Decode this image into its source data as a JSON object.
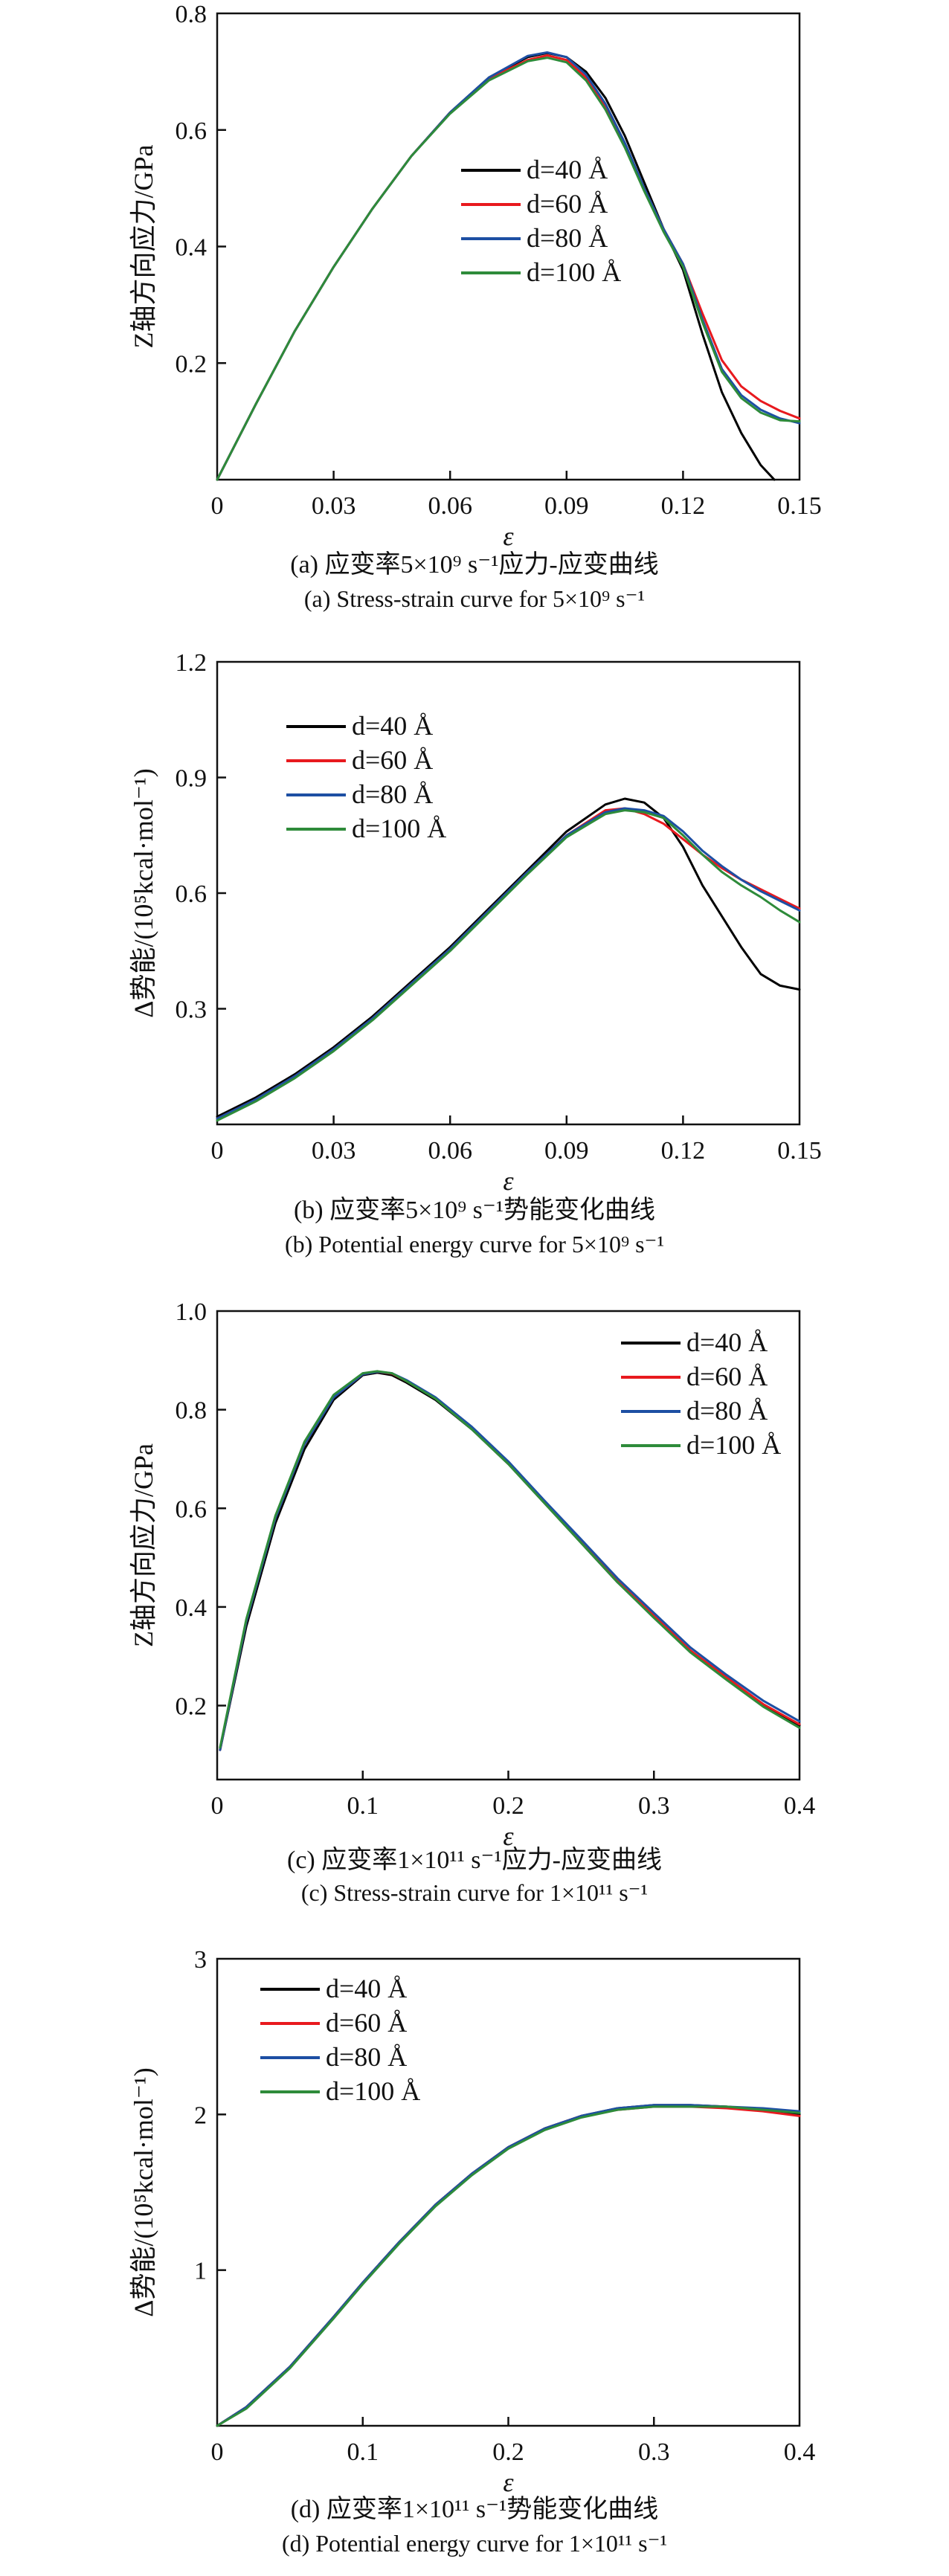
{
  "colors": {
    "d40": "#000000",
    "d60": "#e8191e",
    "d80": "#1d4fa3",
    "d100": "#2e8b3a"
  },
  "chart_data": [
    {
      "type": "line",
      "panel": "a",
      "xlabel": "ε",
      "ylabel": "Z轴方向应力/GPa",
      "xlim": [
        0,
        0.15
      ],
      "ylim": [
        0,
        0.8
      ],
      "xticks": [
        "0",
        "0.03",
        "0.06",
        "0.09",
        "0.12",
        "0.15"
      ],
      "xtick_values": [
        0,
        0.03,
        0.06,
        0.09,
        0.12,
        0.15
      ],
      "yticks": [
        "0.2",
        "0.4",
        "0.6",
        "0.8"
      ],
      "ytick_values": [
        0.2,
        0.4,
        0.6,
        0.8
      ],
      "legend_position": "center",
      "caption_cn": "(a) 应变率5×10⁹ s⁻¹应力-应变曲线",
      "caption_en": "(a) Stress-strain curve for 5×10⁹ s⁻¹",
      "series": [
        {
          "name": "d=40 Å",
          "color_key": "d40",
          "x": [
            0,
            0.01,
            0.02,
            0.03,
            0.04,
            0.05,
            0.06,
            0.07,
            0.08,
            0.085,
            0.09,
            0.095,
            0.1,
            0.105,
            0.11,
            0.115,
            0.12,
            0.125,
            0.13,
            0.135,
            0.14,
            0.1435
          ],
          "y": [
            0,
            0.13,
            0.255,
            0.365,
            0.465,
            0.555,
            0.63,
            0.69,
            0.725,
            0.732,
            0.725,
            0.7,
            0.655,
            0.59,
            0.51,
            0.43,
            0.36,
            0.25,
            0.15,
            0.08,
            0.025,
            0
          ]
        },
        {
          "name": "d=60 Å",
          "color_key": "d60",
          "x": [
            0,
            0.01,
            0.02,
            0.03,
            0.04,
            0.05,
            0.06,
            0.07,
            0.08,
            0.085,
            0.09,
            0.095,
            0.1,
            0.105,
            0.11,
            0.115,
            0.12,
            0.125,
            0.13,
            0.135,
            0.14,
            0.145,
            0.15
          ],
          "y": [
            0,
            0.13,
            0.255,
            0.365,
            0.465,
            0.555,
            0.63,
            0.688,
            0.72,
            0.728,
            0.72,
            0.69,
            0.64,
            0.575,
            0.5,
            0.43,
            0.37,
            0.285,
            0.205,
            0.16,
            0.135,
            0.118,
            0.105
          ]
        },
        {
          "name": "d=80 Å",
          "color_key": "d80",
          "x": [
            0,
            0.01,
            0.02,
            0.03,
            0.04,
            0.05,
            0.06,
            0.07,
            0.08,
            0.085,
            0.09,
            0.095,
            0.1,
            0.105,
            0.11,
            0.115,
            0.12,
            0.125,
            0.13,
            0.135,
            0.14,
            0.145,
            0.15
          ],
          "y": [
            0,
            0.13,
            0.255,
            0.365,
            0.465,
            0.555,
            0.63,
            0.69,
            0.727,
            0.733,
            0.725,
            0.695,
            0.645,
            0.578,
            0.5,
            0.43,
            0.37,
            0.275,
            0.19,
            0.145,
            0.12,
            0.105,
            0.097
          ]
        },
        {
          "name": "d=100 Å",
          "color_key": "d100",
          "x": [
            0,
            0.01,
            0.02,
            0.03,
            0.04,
            0.05,
            0.06,
            0.07,
            0.08,
            0.085,
            0.09,
            0.095,
            0.1,
            0.105,
            0.11,
            0.115,
            0.12,
            0.125,
            0.13,
            0.135,
            0.14,
            0.145,
            0.15
          ],
          "y": [
            0,
            0.13,
            0.255,
            0.365,
            0.465,
            0.555,
            0.628,
            0.685,
            0.718,
            0.724,
            0.716,
            0.685,
            0.635,
            0.57,
            0.495,
            0.425,
            0.365,
            0.27,
            0.185,
            0.14,
            0.115,
            0.102,
            0.1
          ]
        }
      ]
    },
    {
      "type": "line",
      "panel": "b",
      "xlabel": "ε",
      "ylabel": "Δ势能/(10⁵kcal·mol⁻¹)",
      "xlim": [
        0,
        0.15
      ],
      "ylim": [
        0,
        1.2
      ],
      "xticks": [
        "0",
        "0.03",
        "0.06",
        "0.09",
        "0.12",
        "0.15"
      ],
      "xtick_values": [
        0,
        0.03,
        0.06,
        0.09,
        0.12,
        0.15
      ],
      "yticks": [
        "0.3",
        "0.6",
        "0.9",
        "1.2"
      ],
      "ytick_values": [
        0.3,
        0.6,
        0.9,
        1.2
      ],
      "legend_position": "top-left",
      "caption_cn": "(b) 应变率5×10⁹ s⁻¹势能变化曲线",
      "caption_en": "(b) Potential energy curve for 5×10⁹ s⁻¹",
      "series": [
        {
          "name": "d=40 Å",
          "color_key": "d40",
          "x": [
            0,
            0.01,
            0.02,
            0.03,
            0.04,
            0.05,
            0.06,
            0.07,
            0.08,
            0.09,
            0.1,
            0.105,
            0.11,
            0.115,
            0.12,
            0.125,
            0.13,
            0.135,
            0.14,
            0.145,
            0.15
          ],
          "y": [
            0.02,
            0.07,
            0.13,
            0.2,
            0.28,
            0.37,
            0.46,
            0.56,
            0.66,
            0.76,
            0.83,
            0.845,
            0.835,
            0.795,
            0.72,
            0.62,
            0.54,
            0.46,
            0.39,
            0.36,
            0.35
          ]
        },
        {
          "name": "d=60 Å",
          "color_key": "d60",
          "x": [
            0,
            0.01,
            0.02,
            0.03,
            0.04,
            0.05,
            0.06,
            0.07,
            0.08,
            0.09,
            0.1,
            0.105,
            0.11,
            0.115,
            0.12,
            0.125,
            0.13,
            0.135,
            0.14,
            0.145,
            0.15
          ],
          "y": [
            0.015,
            0.065,
            0.125,
            0.195,
            0.275,
            0.365,
            0.455,
            0.555,
            0.655,
            0.75,
            0.815,
            0.82,
            0.805,
            0.78,
            0.74,
            0.7,
            0.665,
            0.635,
            0.61,
            0.585,
            0.56
          ]
        },
        {
          "name": "d=80 Å",
          "color_key": "d80",
          "x": [
            0,
            0.01,
            0.02,
            0.03,
            0.04,
            0.05,
            0.06,
            0.07,
            0.08,
            0.09,
            0.1,
            0.105,
            0.11,
            0.115,
            0.12,
            0.125,
            0.13,
            0.135,
            0.14,
            0.145,
            0.15
          ],
          "y": [
            0.015,
            0.065,
            0.125,
            0.195,
            0.275,
            0.365,
            0.455,
            0.555,
            0.655,
            0.75,
            0.81,
            0.82,
            0.815,
            0.8,
            0.76,
            0.71,
            0.67,
            0.635,
            0.605,
            0.58,
            0.555
          ]
        },
        {
          "name": "d=100 Å",
          "color_key": "d100",
          "x": [
            0,
            0.01,
            0.02,
            0.03,
            0.04,
            0.05,
            0.06,
            0.07,
            0.08,
            0.09,
            0.1,
            0.105,
            0.11,
            0.115,
            0.12,
            0.125,
            0.13,
            0.135,
            0.14,
            0.145,
            0.15
          ],
          "y": [
            0.01,
            0.06,
            0.12,
            0.19,
            0.27,
            0.36,
            0.45,
            0.55,
            0.65,
            0.745,
            0.805,
            0.815,
            0.81,
            0.795,
            0.75,
            0.7,
            0.655,
            0.62,
            0.59,
            0.555,
            0.525
          ]
        }
      ]
    },
    {
      "type": "line",
      "panel": "c",
      "xlabel": "ε",
      "ylabel": "Z轴方向应力/GPa",
      "xlim": [
        0,
        0.4
      ],
      "ylim": [
        0.05,
        1.0
      ],
      "xticks": [
        "0",
        "0.1",
        "0.2",
        "0.3",
        "0.4"
      ],
      "xtick_values": [
        0,
        0.1,
        0.2,
        0.3,
        0.4
      ],
      "yticks": [
        "0.2",
        "0.4",
        "0.6",
        "0.8",
        "1.0"
      ],
      "ytick_values": [
        0.2,
        0.4,
        0.6,
        0.8,
        1.0
      ],
      "legend_position": "top-right",
      "caption_cn": "(c) 应变率1×10¹¹ s⁻¹应力-应变曲线",
      "caption_en": "(c) Stress-strain curve for 1×10¹¹ s⁻¹",
      "series": [
        {
          "name": "d=40 Å",
          "color_key": "d40",
          "x": [
            0.002,
            0.02,
            0.04,
            0.06,
            0.08,
            0.1,
            0.11,
            0.12,
            0.13,
            0.15,
            0.175,
            0.2,
            0.225,
            0.25,
            0.275,
            0.3,
            0.325,
            0.35,
            0.375,
            0.4
          ],
          "y": [
            0.11,
            0.36,
            0.57,
            0.72,
            0.82,
            0.87,
            0.875,
            0.87,
            0.855,
            0.82,
            0.76,
            0.69,
            0.61,
            0.53,
            0.45,
            0.38,
            0.31,
            0.255,
            0.2,
            0.16
          ]
        },
        {
          "name": "d=60 Å",
          "color_key": "d60",
          "x": [
            0.002,
            0.02,
            0.04,
            0.06,
            0.08,
            0.1,
            0.11,
            0.12,
            0.13,
            0.15,
            0.175,
            0.2,
            0.225,
            0.25,
            0.275,
            0.3,
            0.325,
            0.35,
            0.375,
            0.4
          ],
          "y": [
            0.11,
            0.37,
            0.58,
            0.73,
            0.825,
            0.872,
            0.877,
            0.873,
            0.858,
            0.823,
            0.762,
            0.692,
            0.612,
            0.532,
            0.452,
            0.382,
            0.312,
            0.257,
            0.203,
            0.162
          ]
        },
        {
          "name": "d=80 Å",
          "color_key": "d80",
          "x": [
            0.002,
            0.02,
            0.04,
            0.06,
            0.08,
            0.1,
            0.11,
            0.12,
            0.13,
            0.15,
            0.175,
            0.2,
            0.225,
            0.25,
            0.275,
            0.3,
            0.325,
            0.35,
            0.375,
            0.4
          ],
          "y": [
            0.11,
            0.37,
            0.58,
            0.73,
            0.825,
            0.872,
            0.877,
            0.874,
            0.86,
            0.825,
            0.765,
            0.695,
            0.615,
            0.537,
            0.458,
            0.388,
            0.318,
            0.262,
            0.21,
            0.168
          ]
        },
        {
          "name": "d=100 Å",
          "color_key": "d100",
          "x": [
            0.002,
            0.02,
            0.04,
            0.06,
            0.08,
            0.1,
            0.11,
            0.12,
            0.13,
            0.15,
            0.175,
            0.2,
            0.225,
            0.25,
            0.275,
            0.3,
            0.325,
            0.35,
            0.375,
            0.4
          ],
          "y": [
            0.115,
            0.375,
            0.585,
            0.735,
            0.83,
            0.874,
            0.878,
            0.874,
            0.858,
            0.822,
            0.76,
            0.69,
            0.61,
            0.53,
            0.45,
            0.378,
            0.308,
            0.252,
            0.198,
            0.155
          ]
        }
      ]
    },
    {
      "type": "line",
      "panel": "d",
      "xlabel": "ε",
      "ylabel": "Δ势能/(10⁵kcal·mol⁻¹)",
      "xlim": [
        0,
        0.4
      ],
      "ylim": [
        0,
        3
      ],
      "xticks": [
        "0",
        "0.1",
        "0.2",
        "0.3",
        "0.4"
      ],
      "xtick_values": [
        0,
        0.1,
        0.2,
        0.3,
        0.4
      ],
      "yticks": [
        "1",
        "2",
        "3"
      ],
      "ytick_values": [
        1,
        2,
        3
      ],
      "legend_position": "top-left",
      "caption_cn": "(d) 应变率1×10¹¹ s⁻¹势能变化曲线",
      "caption_en": "(d) Potential energy curve for 1×10¹¹ s⁻¹",
      "series": [
        {
          "name": "d=40 Å",
          "color_key": "d40",
          "x": [
            0,
            0.02,
            0.05,
            0.08,
            0.1,
            0.125,
            0.15,
            0.175,
            0.2,
            0.225,
            0.25,
            0.275,
            0.3,
            0.325,
            0.35,
            0.375,
            0.4
          ],
          "y": [
            0,
            0.12,
            0.38,
            0.7,
            0.92,
            1.18,
            1.42,
            1.62,
            1.79,
            1.91,
            1.99,
            2.04,
            2.06,
            2.06,
            2.05,
            2.03,
            2.0
          ]
        },
        {
          "name": "d=60 Å",
          "color_key": "d60",
          "x": [
            0,
            0.02,
            0.05,
            0.08,
            0.1,
            0.125,
            0.15,
            0.175,
            0.2,
            0.225,
            0.25,
            0.275,
            0.3,
            0.325,
            0.35,
            0.375,
            0.4
          ],
          "y": [
            0,
            0.12,
            0.38,
            0.7,
            0.92,
            1.18,
            1.42,
            1.62,
            1.79,
            1.91,
            1.99,
            2.03,
            2.05,
            2.05,
            2.04,
            2.02,
            1.99
          ]
        },
        {
          "name": "d=80 Å",
          "color_key": "d80",
          "x": [
            0,
            0.02,
            0.05,
            0.08,
            0.1,
            0.125,
            0.15,
            0.175,
            0.2,
            0.225,
            0.25,
            0.275,
            0.3,
            0.325,
            0.35,
            0.375,
            0.4
          ],
          "y": [
            0,
            0.12,
            0.38,
            0.7,
            0.92,
            1.18,
            1.42,
            1.62,
            1.79,
            1.91,
            1.99,
            2.04,
            2.06,
            2.06,
            2.05,
            2.04,
            2.02
          ]
        },
        {
          "name": "d=100 Å",
          "color_key": "d100",
          "x": [
            0,
            0.02,
            0.05,
            0.08,
            0.1,
            0.125,
            0.15,
            0.175,
            0.2,
            0.225,
            0.25,
            0.275,
            0.3,
            0.325,
            0.35,
            0.375,
            0.4
          ],
          "y": [
            0,
            0.11,
            0.37,
            0.69,
            0.91,
            1.17,
            1.41,
            1.61,
            1.78,
            1.9,
            1.98,
            2.03,
            2.05,
            2.05,
            2.05,
            2.03,
            2.01
          ]
        }
      ]
    }
  ]
}
